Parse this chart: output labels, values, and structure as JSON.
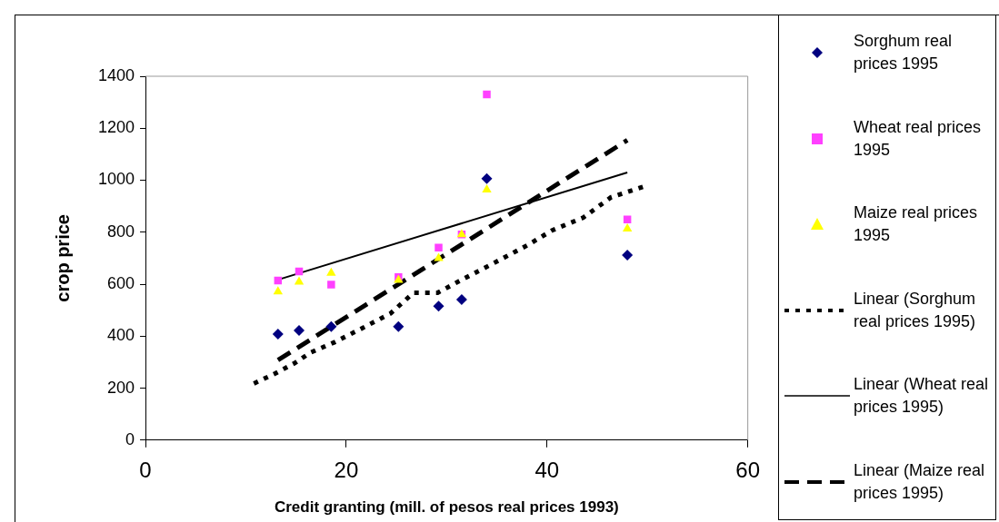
{
  "chart_data": {
    "type": "scatter",
    "xlabel": "Credit granting (mill. of pesos real prices 1993)",
    "ylabel": "crop price",
    "x": [
      13.2,
      15.3,
      18.5,
      25.2,
      29.2,
      31.5,
      34.0,
      48.0
    ],
    "xlim": [
      0,
      60
    ],
    "xticks": [
      0,
      20,
      40,
      60
    ],
    "ylim": [
      0,
      1400
    ],
    "yticks": [
      0,
      200,
      400,
      600,
      800,
      1000,
      1200,
      1400
    ],
    "grid": false,
    "legend": "right",
    "series": [
      {
        "name": "Sorghum real prices 1995",
        "color": "#000080",
        "marker": "diamond",
        "values": [
          408,
          422,
          437,
          437,
          515,
          541,
          1006,
          712
        ]
      },
      {
        "name": "Wheat real prices 1995",
        "color": "#ff40ff",
        "marker": "square",
        "values": [
          614,
          649,
          598,
          627,
          741,
          791,
          1330,
          849
        ]
      },
      {
        "name": "Maize real prices 1995",
        "color": "#ffff00",
        "marker": "triangle",
        "values": [
          571,
          609,
          643,
          616,
          700,
          791,
          963,
          813
        ]
      },
      {
        "name": "Linear (Sorghum real prices 1995)",
        "type": "line",
        "color": "#000000",
        "marker": "none",
        "line_style": "dotted",
        "x": [
          10.8,
          12.9,
          14.9,
          16.4,
          18.8,
          21.2,
          24.4,
          26.7,
          29.1,
          31.8,
          34.6,
          38.1,
          40.5,
          43.6,
          46.4,
          49.6
        ],
        "values": [
          218,
          256,
          297,
          336,
          376,
          423,
          487,
          567,
          567,
          623,
          679,
          751,
          807,
          856,
          935,
          975
        ]
      },
      {
        "name": "Linear (Wheat real prices 1995)",
        "type": "line",
        "color": "#000000",
        "marker": "none",
        "line_style": "solid",
        "x": [
          13.2,
          48.0
        ],
        "values": [
          617,
          1030
        ]
      },
      {
        "name": "Linear (Maize real prices 1995)",
        "type": "line",
        "color": "#000000",
        "marker": "none",
        "line_style": "dashed",
        "x": [
          13.2,
          48.0
        ],
        "values": [
          308,
          1154
        ]
      }
    ]
  }
}
